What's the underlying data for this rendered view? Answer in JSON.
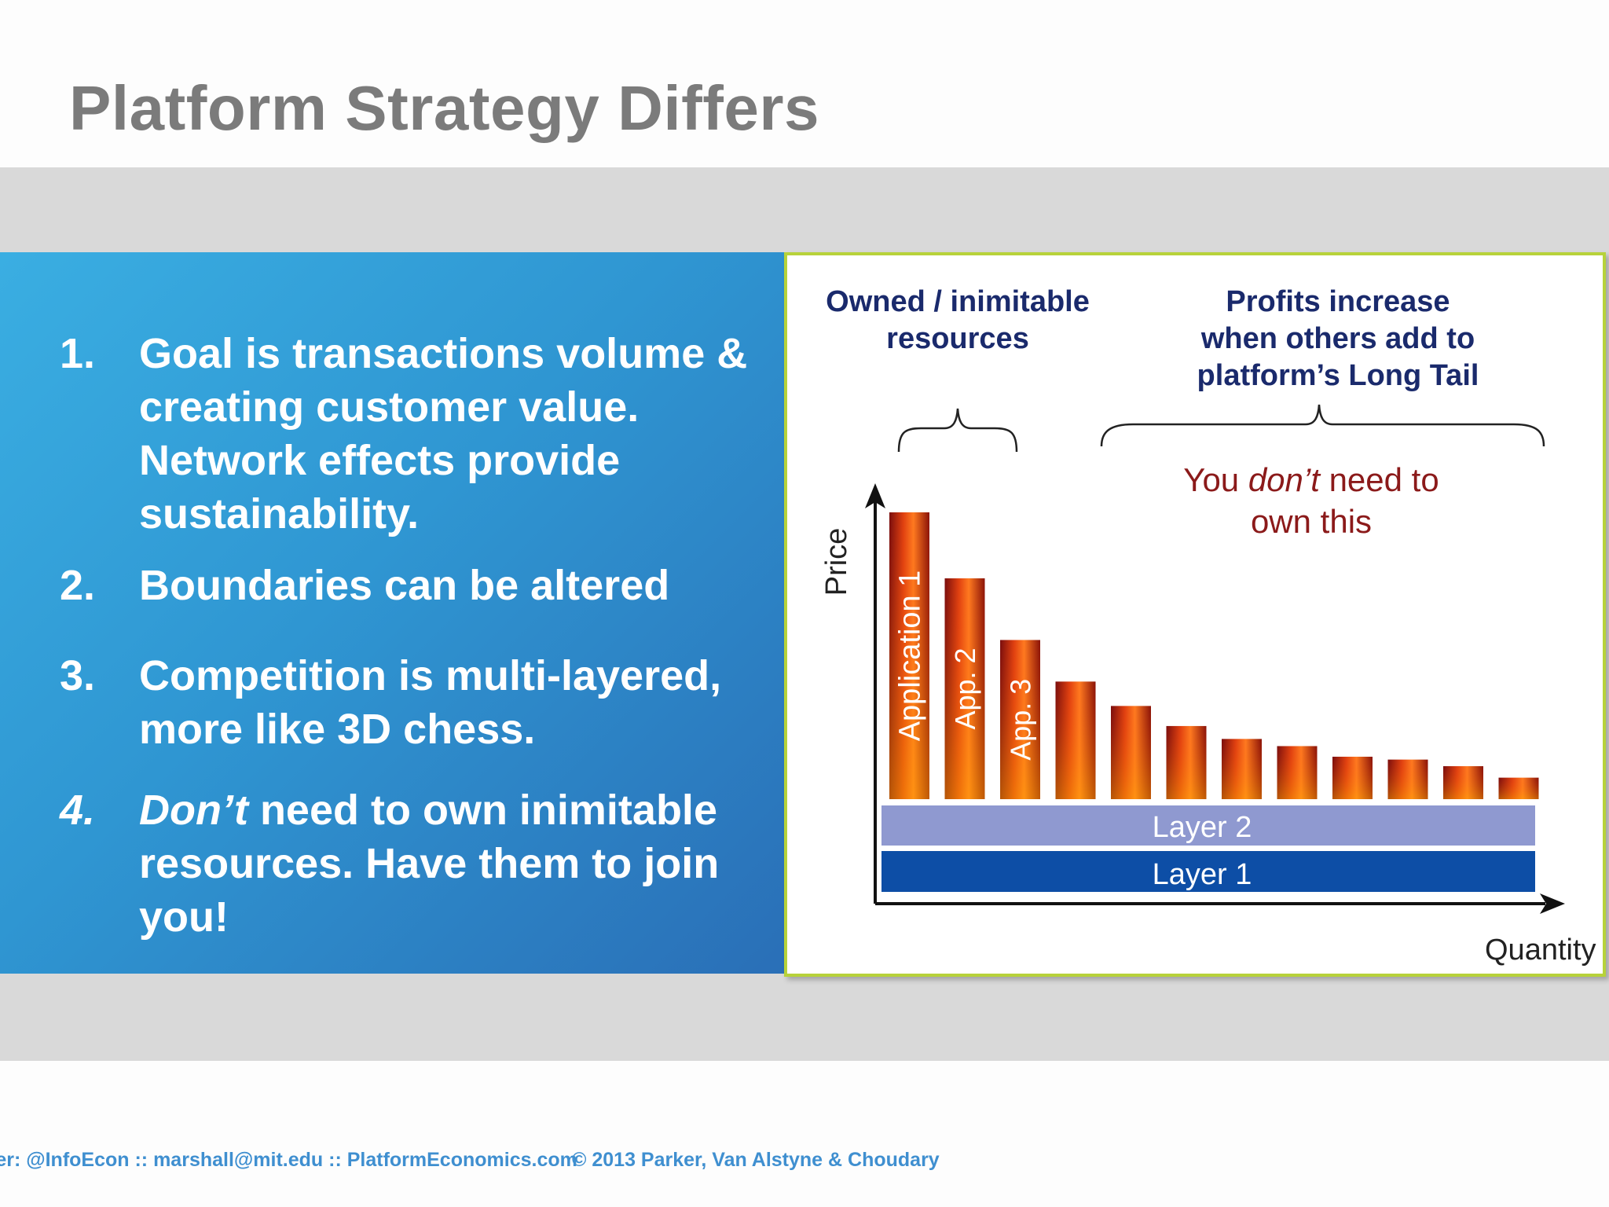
{
  "slide": {
    "title": "Platform Strategy Differs"
  },
  "points": [
    {
      "number": "1.",
      "text": "Goal is transactions volume & creating customer value. Network effects provide sustainability."
    },
    {
      "number": "2.",
      "text": "Boundaries can be altered"
    },
    {
      "number": "3.",
      "text": "Competition is multi-layered, more like 3D chess."
    },
    {
      "number": "4.",
      "emphasis": "Don’t",
      "text": " need to own inimitable resources. Have them to join you!"
    }
  ],
  "diagram": {
    "owned_label_line1": "Owned / inimitable",
    "owned_label_line2": "resources",
    "profits_label_line1": "Profits increase",
    "profits_label_line2": "when others add to",
    "profits_label_line3": "platform’s Long Tail",
    "note_prefix": "You ",
    "note_emphasis": "don’t",
    "note_suffix": " need to",
    "note_line2": "own this",
    "y_axis_label": "Price",
    "x_axis_label": "Quantity",
    "bar_labels": [
      "Application 1",
      "App. 2",
      "App. 3"
    ],
    "bar_relative_heights": [
      1.0,
      0.77,
      0.555,
      0.41,
      0.325,
      0.255,
      0.21,
      0.185,
      0.148,
      0.138,
      0.115,
      0.075
    ],
    "layer2_label": "Layer 2",
    "layer1_label": "Layer 1",
    "colors": {
      "heading_text": "#1a2a6c",
      "note_text": "#8b1a1a",
      "layer2": "#8f99d0",
      "layer1": "#0d4ea6",
      "frame_border": "#b7d23a"
    }
  },
  "footer": {
    "contact": "ter: @InfoEcon  ::  marshall@mit.edu  ::  PlatformEconomics.com",
    "copyright": "© 2013 Parker, Van Alstyne & Choudary"
  }
}
